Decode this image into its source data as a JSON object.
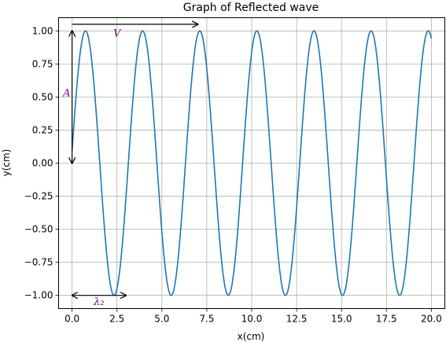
{
  "chart_data": {
    "type": "line",
    "title": "Graph of Reflected wave",
    "xlabel": "x(cm)",
    "ylabel": "y(cm)",
    "xlim": [
      -0.75,
      20.75
    ],
    "ylim": [
      -1.1,
      1.1
    ],
    "xticks": [
      0.0,
      2.5,
      5.0,
      7.5,
      10.0,
      12.5,
      15.0,
      17.5,
      20.0
    ],
    "xtick_labels": [
      "0.0",
      "2.5",
      "5.0",
      "7.5",
      "10.0",
      "12.5",
      "15.0",
      "17.5",
      "20.0"
    ],
    "yticks": [
      -1.0,
      -0.75,
      -0.5,
      -0.25,
      0.0,
      0.25,
      0.5,
      0.75,
      1.0
    ],
    "ytick_labels": [
      "−1.00",
      "−0.75",
      "−0.50",
      "−0.25",
      "0.00",
      "0.25",
      "0.50",
      "0.75",
      "1.00"
    ],
    "grid": true,
    "series": [
      {
        "color": "#1f77b4",
        "function": "y = sin(k*x + 0.094)",
        "wavelength": 3.18,
        "x_range": [
          0,
          20
        ]
      }
    ],
    "annotations": [
      {
        "label": "V",
        "arrow_from": [
          0,
          1.05
        ],
        "arrow_to": [
          7.0,
          1.05
        ],
        "style": "->",
        "text_at": [
          2.5,
          0.98
        ]
      },
      {
        "label": "A",
        "arrow_from": [
          0,
          1.0
        ],
        "arrow_to": [
          0,
          0.0
        ],
        "style": "<->",
        "text_at": [
          -0.3,
          0.53
        ]
      },
      {
        "label": "λ₂",
        "arrow_from": [
          0,
          -1.0
        ],
        "arrow_to": [
          3.0,
          -1.0
        ],
        "style": "<->",
        "text_at": [
          1.5,
          -1.05
        ]
      }
    ],
    "annotation_color": "#800080"
  }
}
